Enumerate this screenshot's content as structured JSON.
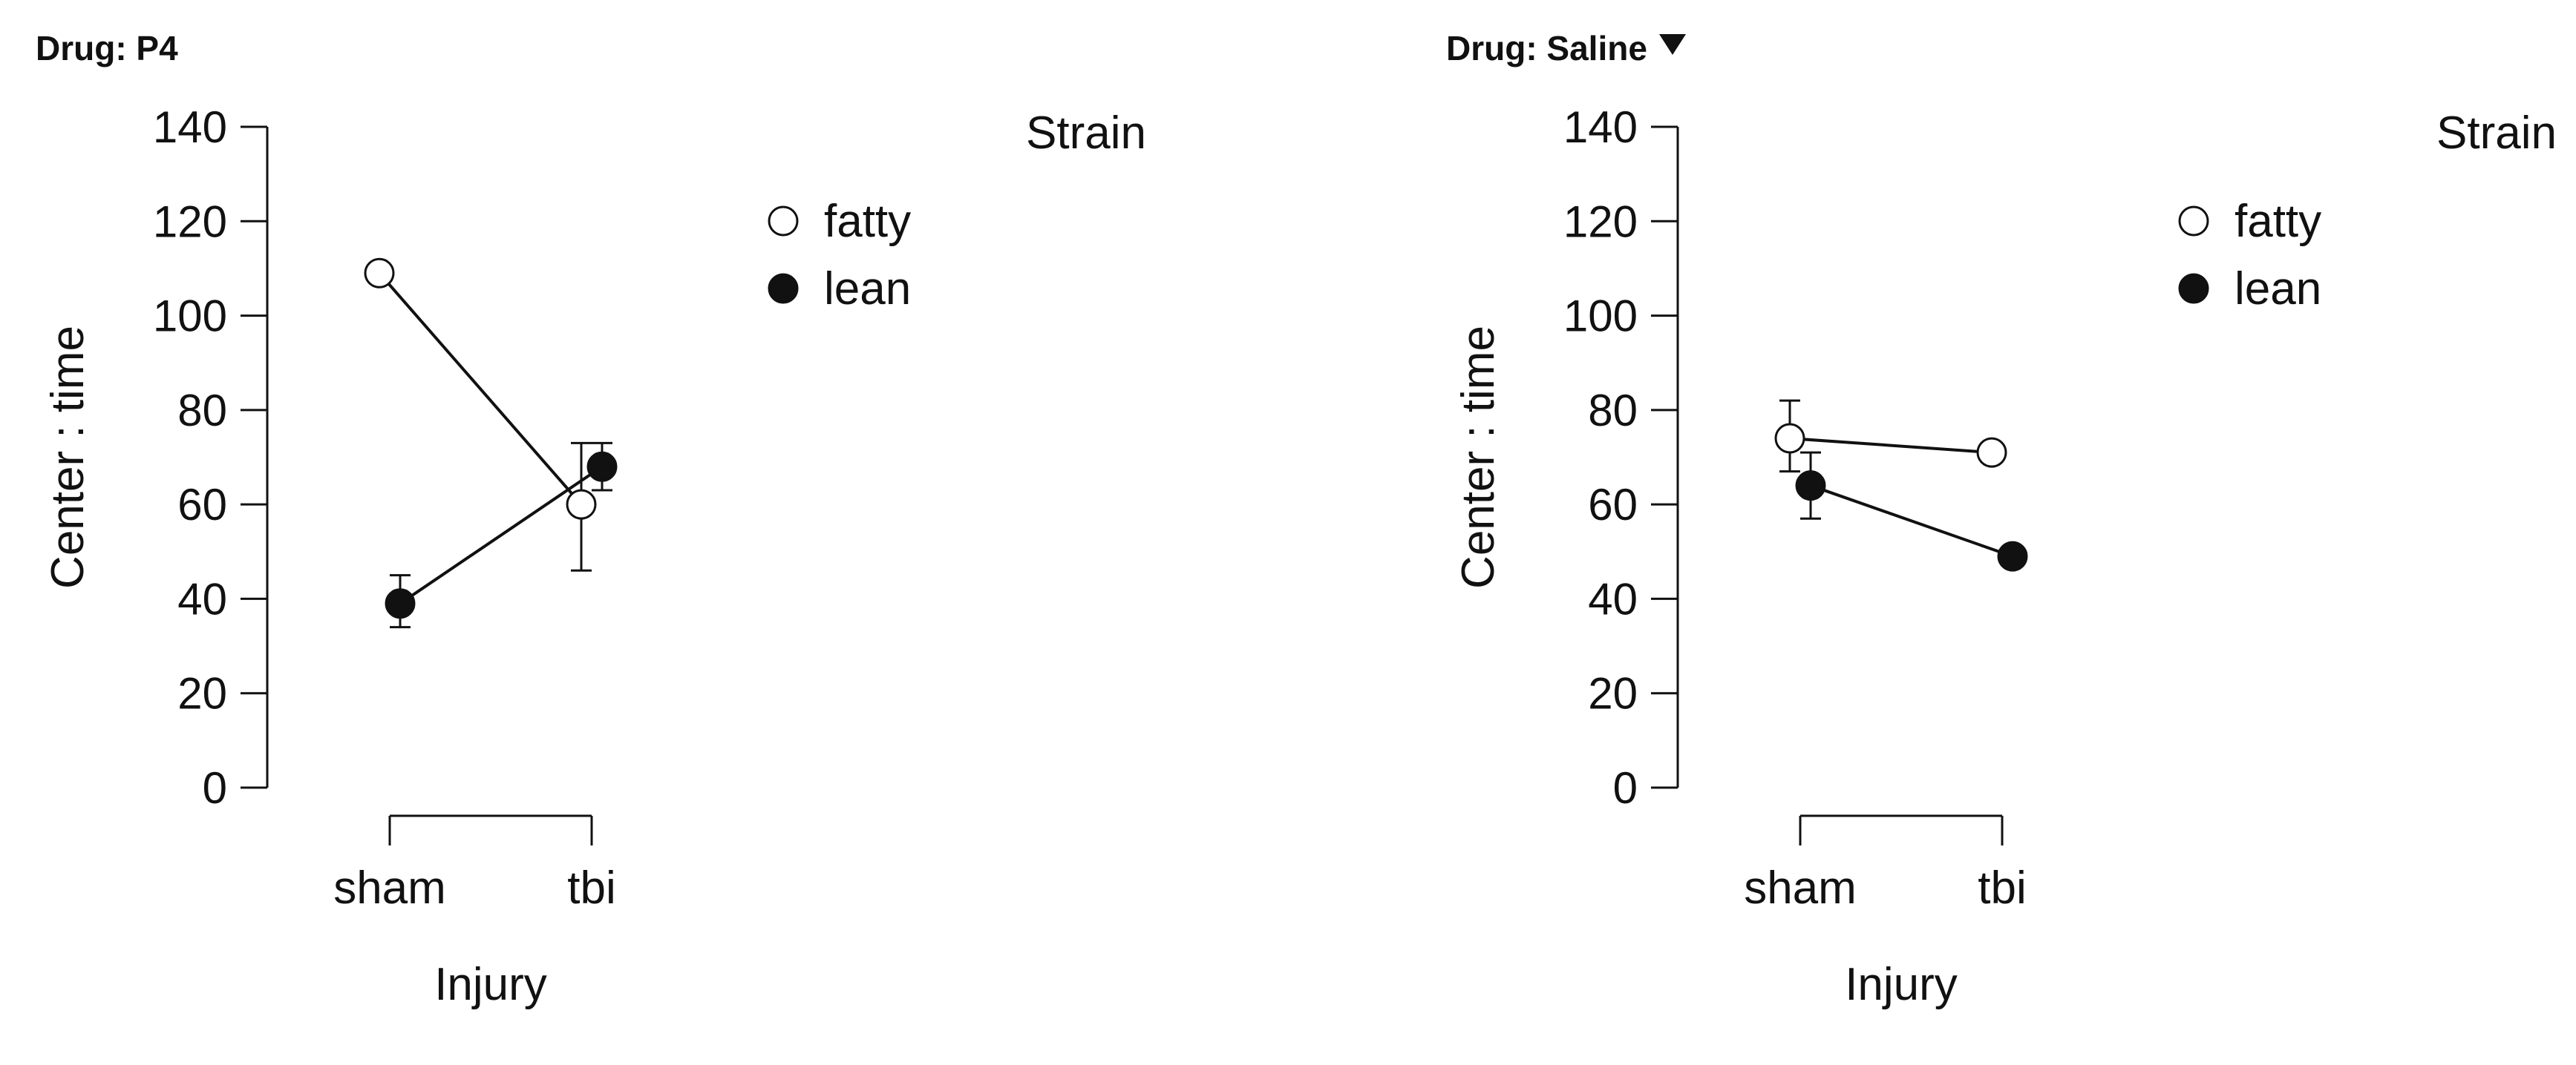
{
  "chart_data": [
    {
      "type": "line",
      "panel_title": "Drug: P4",
      "has_dropdown": false,
      "xlabel": "Injury",
      "ylabel": "Center : time",
      "categories": [
        "sham",
        "tbi"
      ],
      "ylim": [
        0,
        140
      ],
      "yticks": [
        0,
        20,
        40,
        60,
        80,
        100,
        120,
        140
      ],
      "legend_title": "Strain",
      "legend_placement": "top-right",
      "grid": false,
      "series": [
        {
          "name": "fatty",
          "marker": "open-circle",
          "values": [
            109,
            60
          ],
          "err_low": [
            null,
            46
          ],
          "err_high": [
            null,
            73
          ]
        },
        {
          "name": "lean",
          "marker": "filled-circle",
          "values": [
            39,
            68
          ],
          "err_low": [
            34,
            63
          ],
          "err_high": [
            45,
            73
          ]
        }
      ]
    },
    {
      "type": "line",
      "panel_title": "Drug: Saline",
      "has_dropdown": true,
      "xlabel": "Injury",
      "ylabel": "Center : time",
      "categories": [
        "sham",
        "tbi"
      ],
      "ylim": [
        0,
        140
      ],
      "yticks": [
        0,
        20,
        40,
        60,
        80,
        100,
        120,
        140
      ],
      "legend_title": "Strain",
      "legend_placement": "top-right",
      "grid": false,
      "series": [
        {
          "name": "fatty",
          "marker": "open-circle",
          "values": [
            74,
            71
          ],
          "err_low": [
            67,
            null
          ],
          "err_high": [
            82,
            null
          ]
        },
        {
          "name": "lean",
          "marker": "filled-circle",
          "values": [
            64,
            49
          ],
          "err_low": [
            57,
            null
          ],
          "err_high": [
            71,
            null
          ]
        }
      ]
    }
  ]
}
